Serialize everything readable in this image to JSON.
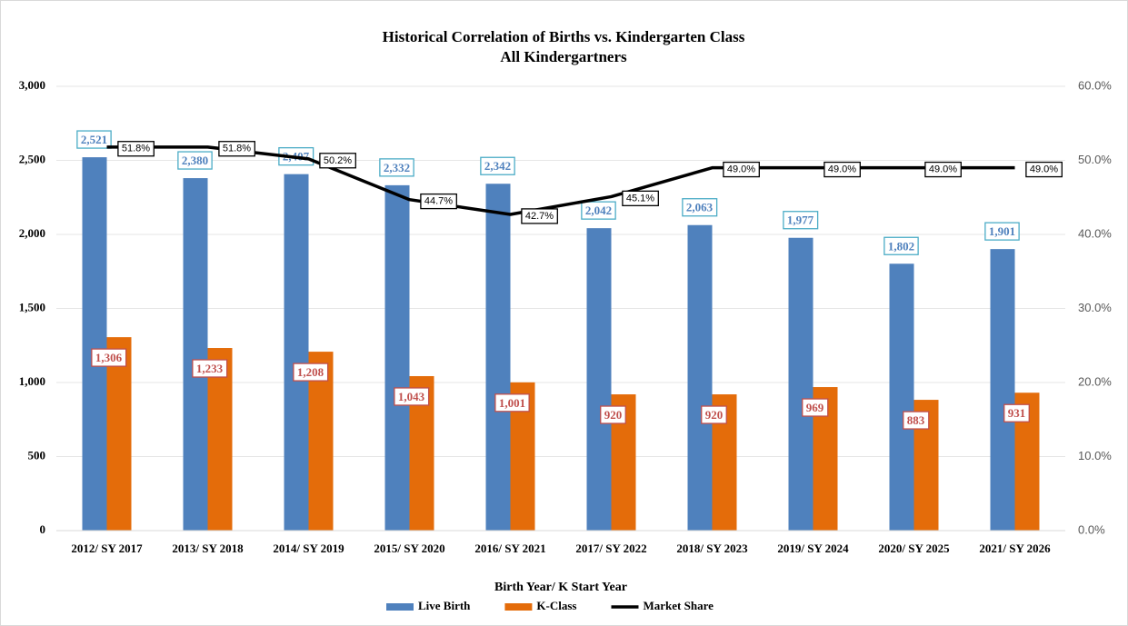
{
  "chart_data": {
    "type": "bar",
    "title": "Historical Correlation of Births vs. Kindergarten Class",
    "subtitle": "All Kindergartners",
    "x_label": "Birth Year/ K Start Year",
    "categories": [
      "2012/ SY 2017",
      "2013/ SY 2018",
      "2014/ SY 2019",
      "2015/ SY 2020",
      "2016/ SY 2021",
      "2017/ SY 2022",
      "2018/ SY 2023",
      "2019/ SY 2024",
      "2020/ SY 2025",
      "2021/ SY 2026"
    ],
    "series": [
      {
        "name": "Live Birth",
        "color": "#4f81bd",
        "values": [
          2521,
          2380,
          2407,
          2332,
          2342,
          2042,
          2063,
          1977,
          1802,
          1901
        ],
        "value_labels": [
          "2,521",
          "2,380",
          "2,407",
          "2,332",
          "2,342",
          "2,042",
          "2,063",
          "1,977",
          "1,802",
          "1,901"
        ]
      },
      {
        "name": "K-Class",
        "color": "#e46c0a",
        "values": [
          1306,
          1233,
          1208,
          1043,
          1001,
          920,
          920,
          969,
          883,
          931
        ],
        "value_labels": [
          "1,306",
          "1,233",
          "1,208",
          "1,043",
          "1,001",
          "920",
          "920",
          "969",
          "883",
          "931"
        ]
      },
      {
        "name": "Market Share",
        "color": "#000000",
        "type": "line",
        "axis": "y2",
        "values": [
          51.8,
          51.8,
          50.2,
          44.7,
          42.7,
          45.1,
          49.0,
          49.0,
          49.0,
          49.0
        ],
        "value_labels": [
          "51.8%",
          "51.8%",
          "50.2%",
          "44.7%",
          "42.7%",
          "45.1%",
          "49.0%",
          "49.0%",
          "49.0%",
          "49.0%"
        ]
      }
    ],
    "ylim": [
      0,
      3000
    ],
    "yticks": [
      0,
      500,
      {
        "value": 1000,
        "label": "1,000"
      },
      {
        "value": 1500,
        "label": "1,500"
      },
      {
        "value": 2000,
        "label": "2,000"
      },
      {
        "value": 2500,
        "label": "2,500"
      },
      {
        "value": 3000,
        "label": "3,000"
      }
    ],
    "y2lim": [
      0,
      60
    ],
    "y2ticks": [
      {
        "value": 0,
        "label": "0.0%"
      },
      {
        "value": 10,
        "label": "10.0%"
      },
      {
        "value": 20,
        "label": "20.0%"
      },
      {
        "value": 30,
        "label": "30.0%"
      },
      {
        "value": 40,
        "label": "40.0%"
      },
      {
        "value": 50,
        "label": "50.0%"
      },
      {
        "value": 60,
        "label": "60.0%"
      }
    ],
    "grid": true,
    "legend": "bottom"
  }
}
